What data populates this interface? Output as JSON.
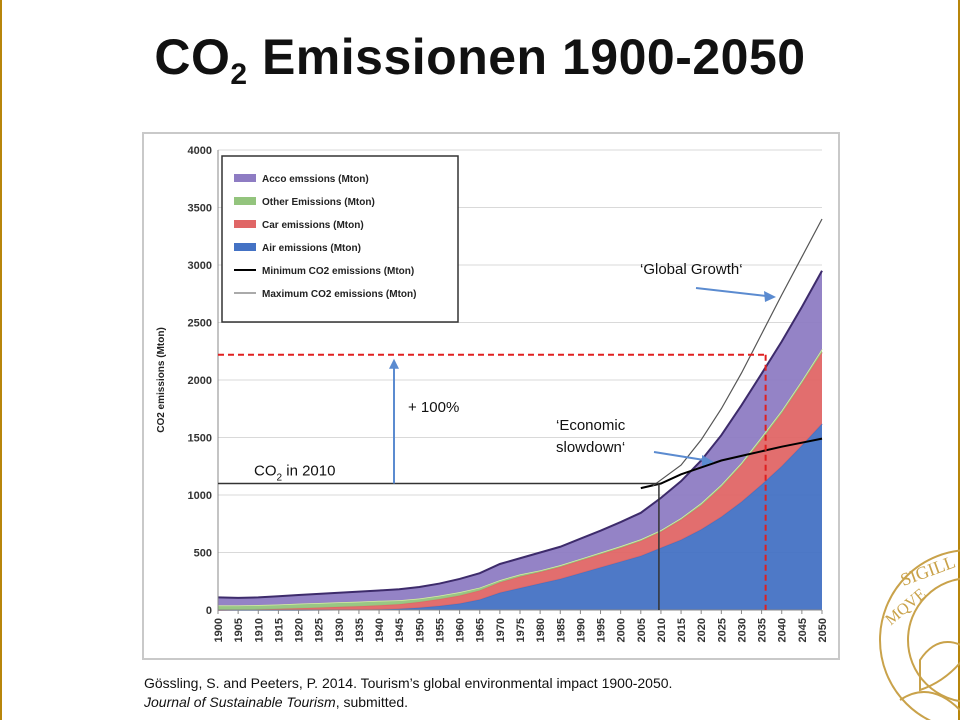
{
  "slide": {
    "title_main": "CO",
    "title_sub": "2",
    "title_rest": " Emissionen 1900-2050"
  },
  "citation": {
    "line1": "Gössling, S. and Peeters, P. 2014. Tourism’s global environmental impact 1900-2050.",
    "journal": "Journal of Sustainable Tourism",
    "line2_rest": ", submitted."
  },
  "seal": {
    "text1": "SIGILL",
    "text2": "MQVE"
  },
  "chart_data": {
    "type": "area",
    "ylabel": "CO2 emissions (Mton)",
    "xlabel": "",
    "ylim": [
      0,
      4000
    ],
    "yticks": [
      0,
      500,
      1000,
      1500,
      2000,
      2500,
      3000,
      3500,
      4000
    ],
    "xlim": [
      1900,
      2050
    ],
    "grid": true,
    "legend_position": "top-left",
    "x": [
      1900,
      1905,
      1910,
      1915,
      1920,
      1925,
      1930,
      1935,
      1940,
      1945,
      1950,
      1955,
      1960,
      1965,
      1970,
      1975,
      1980,
      1985,
      1990,
      1995,
      2000,
      2005,
      2010,
      2015,
      2020,
      2025,
      2030,
      2035,
      2040,
      2045,
      2050
    ],
    "xtick_labels": [
      "1900",
      "1905",
      "1910",
      "1915",
      "1920",
      "1925",
      "1930",
      "1935",
      "1940",
      "1945",
      "1950",
      "1955",
      "1960",
      "1965",
      "1970",
      "1975",
      "1980",
      "1985",
      "1990",
      "1995",
      "2000",
      "2005",
      "2010",
      "2015",
      "2020",
      "2025",
      "2030",
      "2035",
      "2040",
      "2045",
      "2050"
    ],
    "series": [
      {
        "name": "Air emissions (Mton)",
        "color": "#4472c4",
        "values": [
          0,
          0,
          0,
          0,
          0,
          1,
          2,
          3,
          5,
          10,
          20,
          35,
          55,
          90,
          150,
          190,
          230,
          270,
          320,
          370,
          420,
          470,
          540,
          610,
          700,
          810,
          940,
          1090,
          1250,
          1430,
          1620
        ]
      },
      {
        "name": "Car emissions (Mton)",
        "color": "#e06666",
        "values": [
          0,
          2,
          5,
          10,
          15,
          20,
          25,
          30,
          35,
          40,
          50,
          60,
          70,
          80,
          90,
          100,
          100,
          105,
          110,
          115,
          120,
          130,
          140,
          175,
          210,
          260,
          320,
          390,
          460,
          540,
          620
        ]
      },
      {
        "name": "Other Emissions (Mton)",
        "color": "#93c47d",
        "values": [
          40,
          38,
          38,
          38,
          40,
          40,
          40,
          40,
          40,
          35,
          30,
          30,
          30,
          25,
          20,
          20,
          15,
          15,
          15,
          15,
          15,
          15,
          15,
          15,
          20,
          20,
          20,
          25,
          25,
          25,
          30
        ]
      },
      {
        "name": "Acco emssions (Mton)",
        "color": "#8e7cc3",
        "values": [
          70,
          65,
          67,
          72,
          75,
          79,
          83,
          87,
          90,
          95,
          100,
          105,
          115,
          125,
          140,
          140,
          155,
          160,
          175,
          190,
          210,
          230,
          280,
          320,
          370,
          430,
          500,
          550,
          600,
          640,
          680
        ]
      }
    ],
    "lines": [
      {
        "name": "Minimum CO2 emissions (Mton)",
        "color": "#000000",
        "points": [
          [
            2005,
            1060
          ],
          [
            2010,
            1100
          ],
          [
            2015,
            1180
          ],
          [
            2020,
            1240
          ],
          [
            2025,
            1300
          ],
          [
            2030,
            1340
          ],
          [
            2035,
            1380
          ],
          [
            2040,
            1420
          ],
          [
            2045,
            1455
          ],
          [
            2050,
            1490
          ]
        ]
      },
      {
        "name": "Maximum CO2 emissions (Mton)",
        "color": "#555555",
        "points": [
          [
            2008,
            1080
          ],
          [
            2015,
            1260
          ],
          [
            2020,
            1480
          ],
          [
            2025,
            1750
          ],
          [
            2030,
            2060
          ],
          [
            2035,
            2400
          ],
          [
            2040,
            2740
          ],
          [
            2045,
            3070
          ],
          [
            2050,
            3400
          ]
        ]
      }
    ],
    "annotations": {
      "co2_2010_pre": "CO",
      "co2_2010_sub": "2",
      "co2_2010_post": " in 2010",
      "co2_2010_value": 1100,
      "co2_2010_year": 2009.5,
      "plus_label": "+ 100%",
      "target_value": 2220,
      "target_year": 2036,
      "global_growth": "‘Global Growth‘",
      "economic_line1": "‘Economic",
      "economic_line2": "slowdown‘"
    }
  }
}
